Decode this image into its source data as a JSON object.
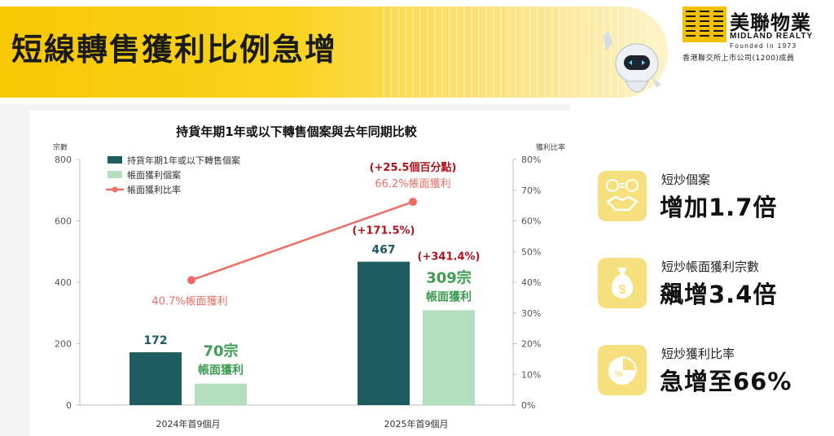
{
  "header": {
    "title": "短線轉售獲利比例急增",
    "logo_cn": "美聯物業",
    "logo_en": "MIDLAND REALTY",
    "logo_founded": "Founded in 1973",
    "logo_listed": "香港聯交所上市公司(1200)成員",
    "gold": "#f7c600"
  },
  "chart_data": {
    "type": "bar",
    "title": "持貨年期1年或以下轉售個案與去年同期比較",
    "y_left_label": "宗數",
    "y_right_label": "獲利比率",
    "ylim_left": [
      0,
      800
    ],
    "left_ticks": [
      "0",
      "200",
      "400",
      "600",
      "800"
    ],
    "ylim_right": [
      0,
      80
    ],
    "right_ticks": [
      "0%",
      "10%",
      "20%",
      "30%",
      "40%",
      "50%",
      "60%",
      "70%",
      "80%"
    ],
    "categories": [
      "2024年首9個月",
      "2025年首9個月"
    ],
    "series": [
      {
        "name": "持貨年期1年或以下轉售個案",
        "type": "bar",
        "color": "#1e5d5f",
        "values": [
          172,
          467
        ],
        "value_labels": [
          "172",
          "467"
        ]
      },
      {
        "name": "帳面獲利個案",
        "type": "bar",
        "color": "#b4dfbe",
        "values": [
          70,
          309
        ],
        "value_labels": [
          "70宗",
          "309宗"
        ],
        "sub_label": "帳面獲利"
      },
      {
        "name": "帳面獲利比率",
        "type": "line",
        "axis": "right",
        "color": "#ef6c64",
        "values": [
          40.7,
          66.2
        ],
        "value_labels": [
          "40.7%帳面獲利",
          "66.2%帳面獲利"
        ]
      }
    ],
    "annotations": {
      "bar_change": "(+171.5%)",
      "profit_change": "(+341.4%)",
      "rate_change": "(+25.5個百分點)",
      "change_color": "#b5121b"
    },
    "legend_position": "top-left"
  },
  "stats": [
    {
      "icon": "handshake-money-icon",
      "label": "短炒個案",
      "value": "增加1.7倍"
    },
    {
      "icon": "money-bag-icon",
      "label": "短炒帳面獲利宗數",
      "value": "飆增3.4倍"
    },
    {
      "icon": "pie-chart-icon",
      "label": "短炒獲利比率",
      "value": "急增至66%"
    }
  ]
}
